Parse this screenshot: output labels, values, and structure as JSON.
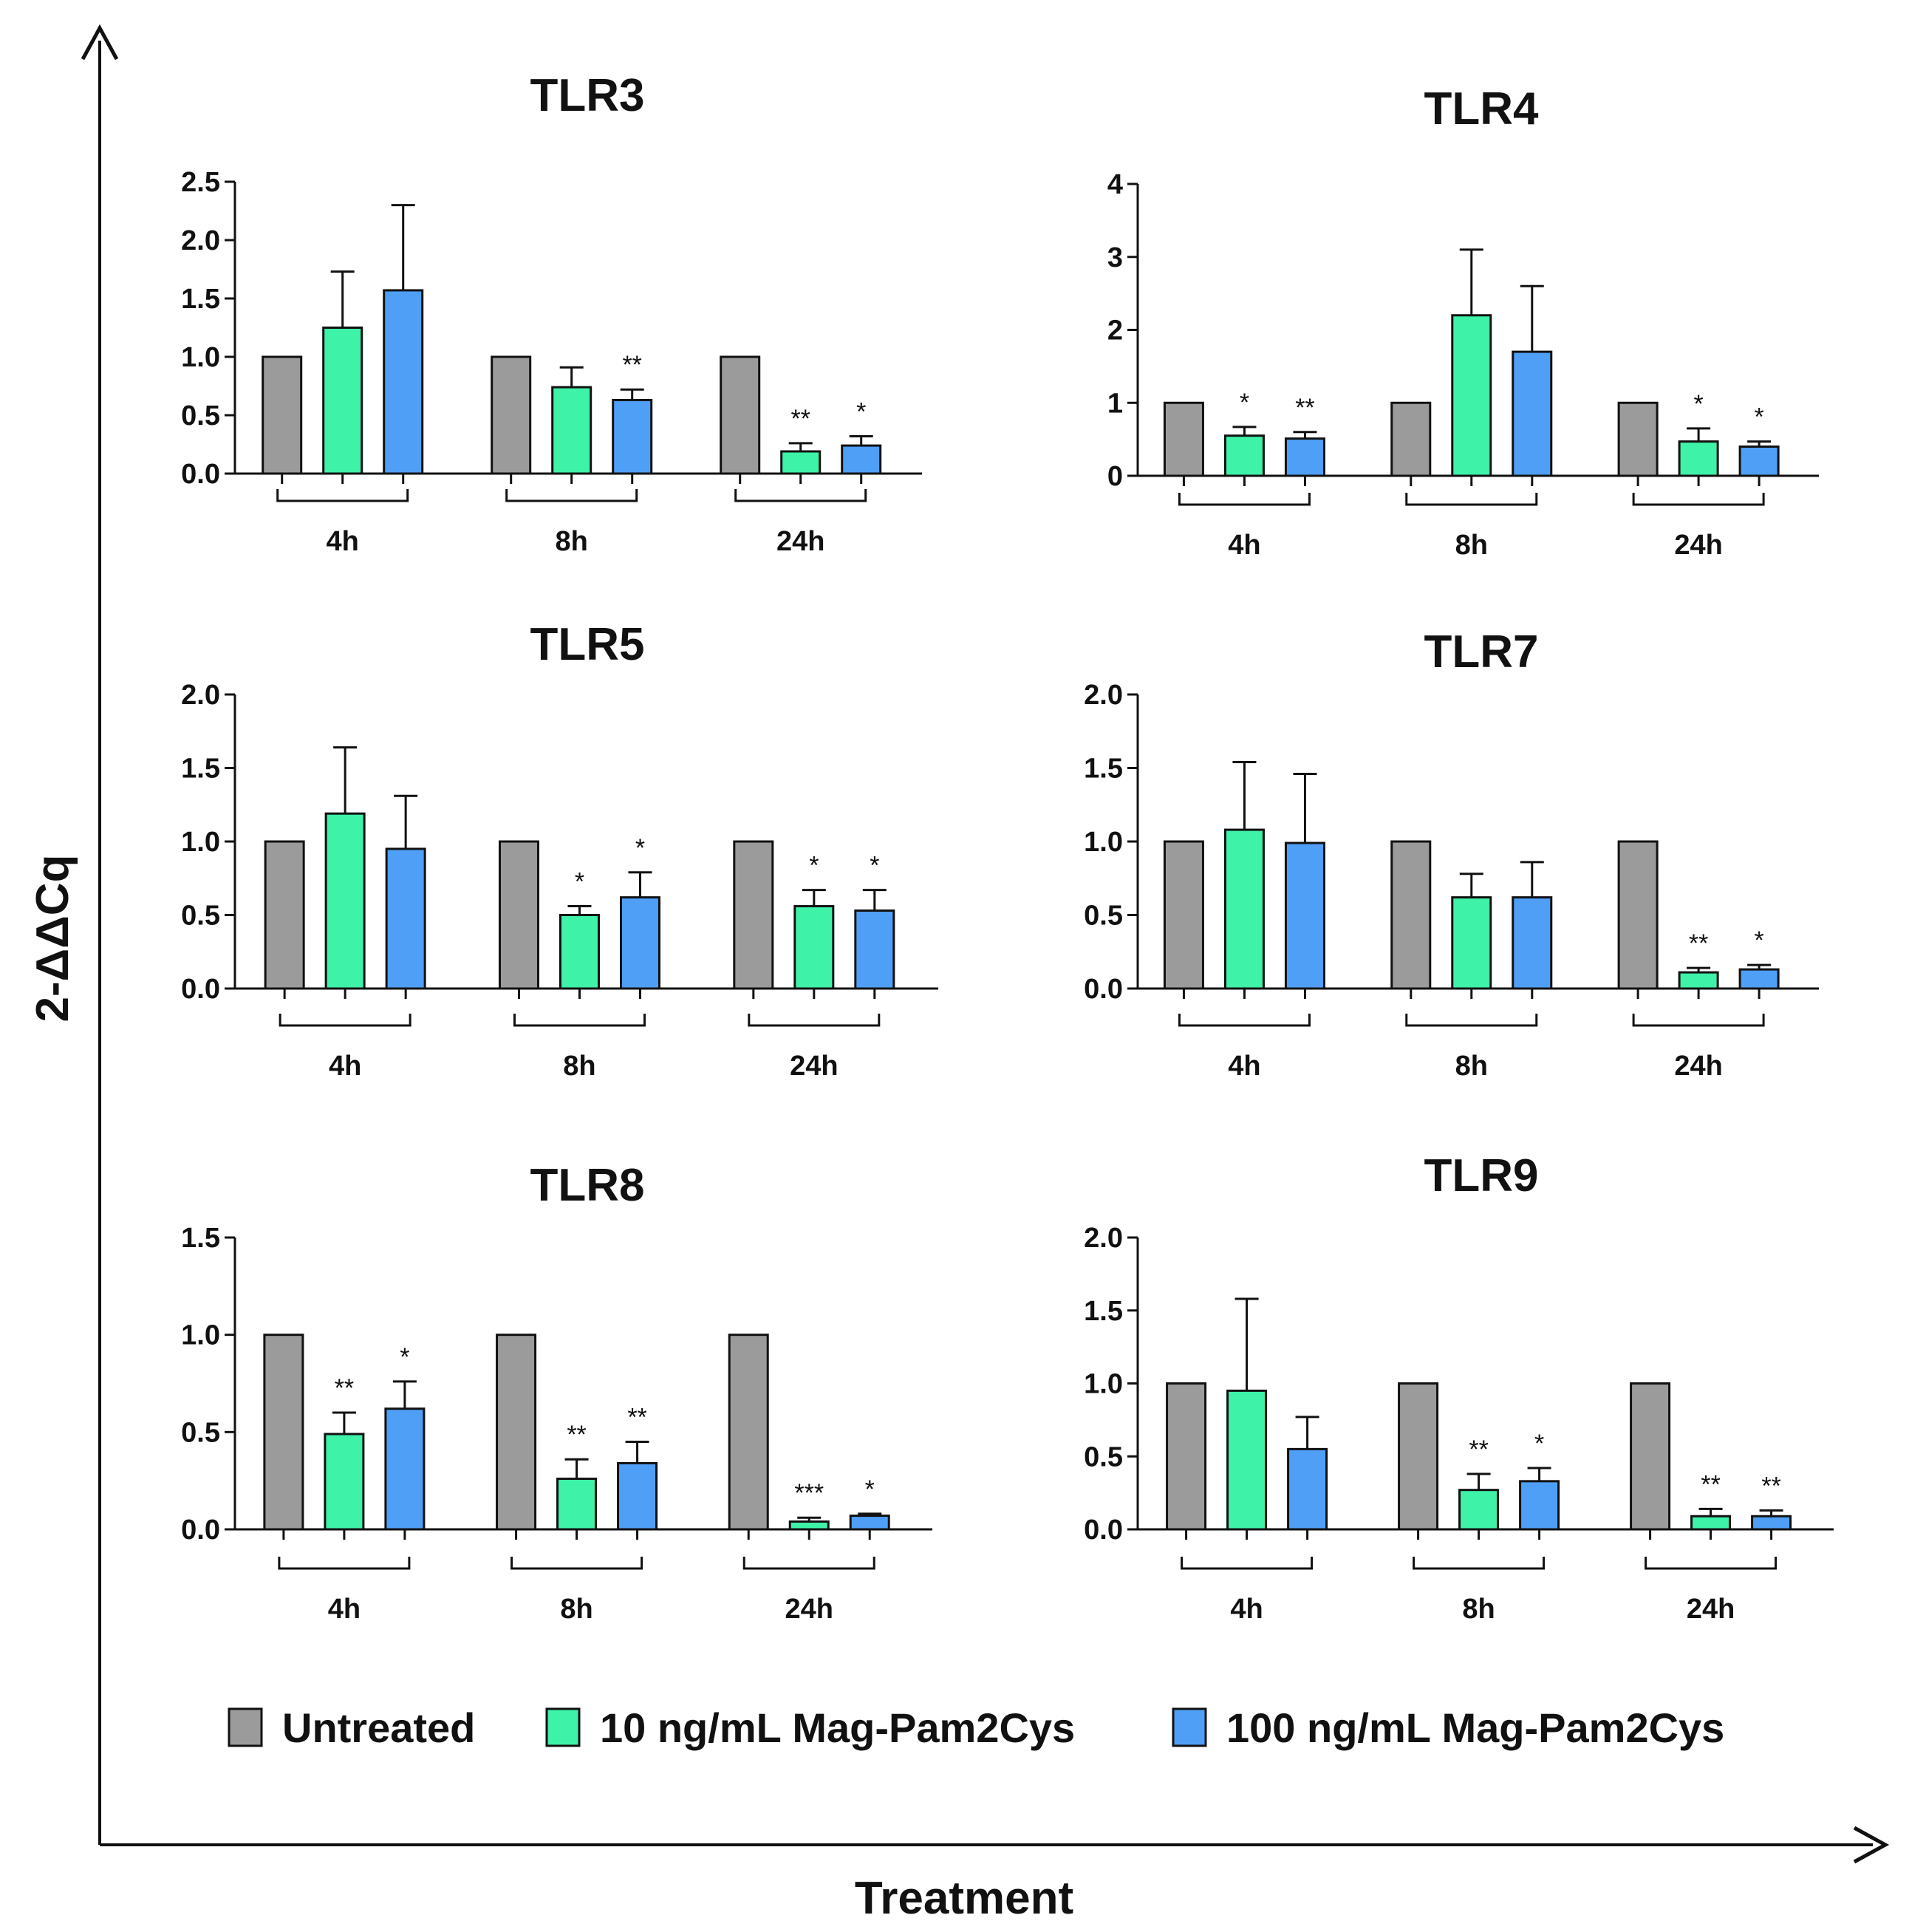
{
  "chart_data": {
    "type": "bar",
    "y_axis_title": "2-ΔΔCq",
    "x_axis_title": "Treatment",
    "colors": {
      "Untreated": "#9b9b9b",
      "10 ng/mL Mag-Pam2Cys": "#3ef2a8",
      "100 ng/mL Mag-Pam2Cys": "#4f9ff7"
    },
    "legend": [
      {
        "label": "Untreated",
        "color": "#9b9b9b"
      },
      {
        "label": "10 ng/mL Mag-Pam2Cys",
        "color": "#3ef2a8"
      },
      {
        "label": "100 ng/mL Mag-Pam2Cys",
        "color": "#4f9ff7"
      }
    ],
    "panels": [
      {
        "title": "TLR3",
        "ylim": [
          0,
          2.5
        ],
        "yticks": [
          "0.0",
          "0.5",
          "1.0",
          "1.5",
          "2.0",
          "2.5"
        ],
        "groups": [
          {
            "label": "4h",
            "values": [
              1.0,
              1.25,
              1.57
            ],
            "errors": [
              0,
              0.48,
              0.73
            ],
            "sig": [
              "",
              "",
              ""
            ]
          },
          {
            "label": "8h",
            "values": [
              1.0,
              0.74,
              0.63
            ],
            "errors": [
              0,
              0.17,
              0.09
            ],
            "sig": [
              "",
              "",
              "**"
            ]
          },
          {
            "label": "24h",
            "values": [
              1.0,
              0.19,
              0.24
            ],
            "errors": [
              0,
              0.07,
              0.08
            ],
            "sig": [
              "",
              "**",
              "*"
            ]
          }
        ]
      },
      {
        "title": "TLR4",
        "ylim": [
          0,
          4
        ],
        "yticks": [
          "0",
          "1",
          "2",
          "3",
          "4"
        ],
        "groups": [
          {
            "label": "4h",
            "values": [
              1.0,
              0.55,
              0.51
            ],
            "errors": [
              0,
              0.12,
              0.09
            ],
            "sig": [
              "",
              "*",
              "**"
            ]
          },
          {
            "label": "8h",
            "values": [
              1.0,
              2.2,
              1.7
            ],
            "errors": [
              0,
              0.9,
              0.9
            ],
            "sig": [
              "",
              "",
              ""
            ]
          },
          {
            "label": "24h",
            "values": [
              1.0,
              0.47,
              0.4
            ],
            "errors": [
              0,
              0.18,
              0.07
            ],
            "sig": [
              "",
              "*",
              "*"
            ]
          }
        ]
      },
      {
        "title": "TLR5",
        "ylim": [
          0,
          2.0
        ],
        "yticks": [
          "0.0",
          "0.5",
          "1.0",
          "1.5",
          "2.0"
        ],
        "groups": [
          {
            "label": "4h",
            "values": [
              1.0,
              1.19,
              0.95
            ],
            "errors": [
              0,
              0.45,
              0.36
            ],
            "sig": [
              "",
              "",
              ""
            ]
          },
          {
            "label": "8h",
            "values": [
              1.0,
              0.5,
              0.62
            ],
            "errors": [
              0,
              0.06,
              0.17
            ],
            "sig": [
              "",
              "*",
              "*"
            ]
          },
          {
            "label": "24h",
            "values": [
              1.0,
              0.56,
              0.53
            ],
            "errors": [
              0,
              0.11,
              0.14
            ],
            "sig": [
              "",
              "*",
              "*"
            ]
          }
        ]
      },
      {
        "title": "TLR7",
        "ylim": [
          0,
          2.0
        ],
        "yticks": [
          "0.0",
          "0.5",
          "1.0",
          "1.5",
          "2.0"
        ],
        "groups": [
          {
            "label": "4h",
            "values": [
              1.0,
              1.08,
              0.99
            ],
            "errors": [
              0,
              0.46,
              0.47
            ],
            "sig": [
              "",
              "",
              ""
            ]
          },
          {
            "label": "8h",
            "values": [
              1.0,
              0.62,
              0.62
            ],
            "errors": [
              0,
              0.16,
              0.24
            ],
            "sig": [
              "",
              "",
              ""
            ]
          },
          {
            "label": "24h",
            "values": [
              1.0,
              0.11,
              0.13
            ],
            "errors": [
              0,
              0.03,
              0.03
            ],
            "sig": [
              "",
              "**",
              "*"
            ]
          }
        ]
      },
      {
        "title": "TLR8",
        "ylim": [
          0,
          1.5
        ],
        "yticks": [
          "0.0",
          "0.5",
          "1.0",
          "1.5"
        ],
        "groups": [
          {
            "label": "4h",
            "values": [
              1.0,
              0.49,
              0.62
            ],
            "errors": [
              0,
              0.11,
              0.14
            ],
            "sig": [
              "",
              "**",
              "*"
            ]
          },
          {
            "label": "8h",
            "values": [
              1.0,
              0.26,
              0.34
            ],
            "errors": [
              0,
              0.1,
              0.11
            ],
            "sig": [
              "",
              "**",
              "**"
            ]
          },
          {
            "label": "24h",
            "values": [
              1.0,
              0.04,
              0.07
            ],
            "errors": [
              0,
              0.02,
              0.01
            ],
            "sig": [
              "",
              "***",
              "*"
            ]
          }
        ]
      },
      {
        "title": "TLR9",
        "ylim": [
          0,
          2.0
        ],
        "yticks": [
          "0.0",
          "0.5",
          "1.0",
          "1.5",
          "2.0"
        ],
        "groups": [
          {
            "label": "4h",
            "values": [
              1.0,
              0.95,
              0.55
            ],
            "errors": [
              0,
              0.63,
              0.22
            ],
            "sig": [
              "",
              "",
              ""
            ]
          },
          {
            "label": "8h",
            "values": [
              1.0,
              0.27,
              0.33
            ],
            "errors": [
              0,
              0.11,
              0.09
            ],
            "sig": [
              "",
              "**",
              "*"
            ]
          },
          {
            "label": "24h",
            "values": [
              1.0,
              0.09,
              0.09
            ],
            "errors": [
              0,
              0.05,
              0.04
            ],
            "sig": [
              "",
              "**",
              "**"
            ]
          }
        ]
      }
    ]
  }
}
